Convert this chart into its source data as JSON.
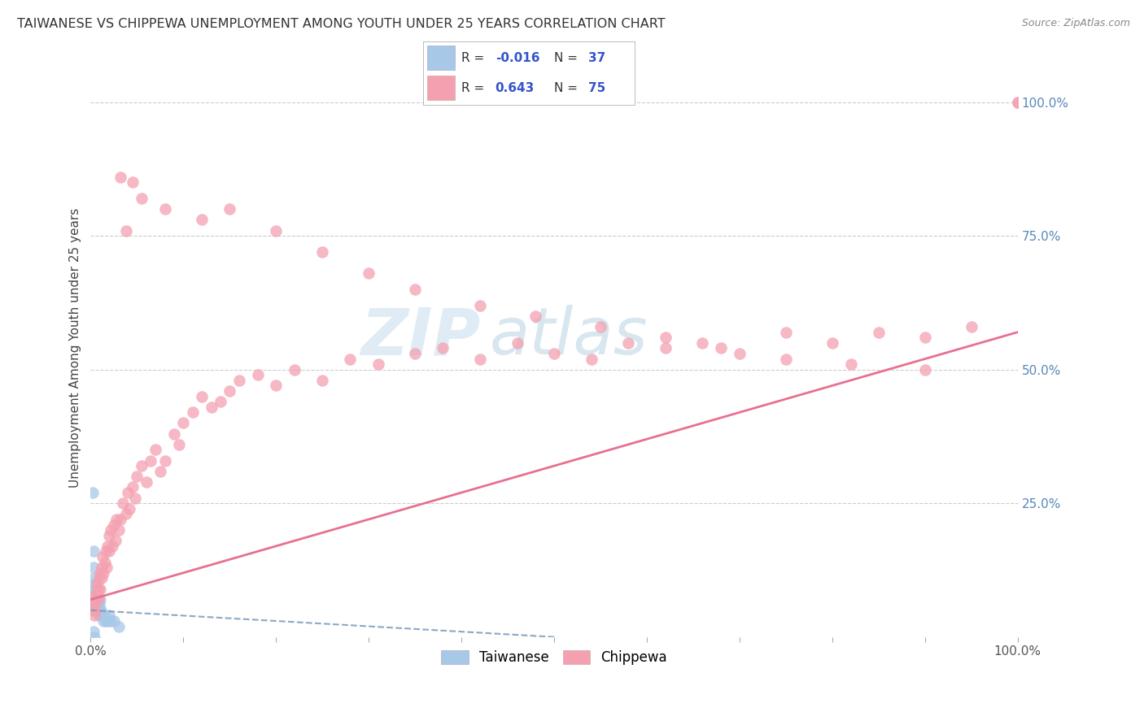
{
  "title": "TAIWANESE VS CHIPPEWA UNEMPLOYMENT AMONG YOUTH UNDER 25 YEARS CORRELATION CHART",
  "source": "Source: ZipAtlas.com",
  "ylabel": "Unemployment Among Youth under 25 years",
  "legend_taiwanese_R": "-0.016",
  "legend_taiwanese_N": "37",
  "legend_chippewa_R": "0.643",
  "legend_chippewa_N": "75",
  "legend_label_taiwanese": "Taiwanese",
  "legend_label_chippewa": "Chippewa",
  "watermark_zip": "ZIP",
  "watermark_atlas": "atlas",
  "taiwanese_color": "#A8C8E8",
  "chippewa_color": "#F4A0B0",
  "taiwanese_line_color": "#7799BB",
  "chippewa_line_color": "#E87090",
  "right_tick_color": "#5588BB",
  "background_color": "#FFFFFF",
  "grid_color": "#CCCCCC",
  "taiwanese_x": [
    0.002,
    0.003,
    0.003,
    0.004,
    0.004,
    0.004,
    0.005,
    0.005,
    0.005,
    0.005,
    0.006,
    0.006,
    0.006,
    0.006,
    0.007,
    0.007,
    0.007,
    0.008,
    0.008,
    0.009,
    0.009,
    0.01,
    0.01,
    0.01,
    0.011,
    0.012,
    0.013,
    0.014,
    0.015,
    0.016,
    0.018,
    0.02,
    0.022,
    0.025,
    0.03,
    0.003,
    0.004
  ],
  "taiwanese_y": [
    0.27,
    0.16,
    0.13,
    0.11,
    0.09,
    0.08,
    0.1,
    0.08,
    0.07,
    0.06,
    0.09,
    0.07,
    0.06,
    0.05,
    0.08,
    0.06,
    0.05,
    0.07,
    0.05,
    0.06,
    0.04,
    0.07,
    0.05,
    0.04,
    0.05,
    0.04,
    0.04,
    0.03,
    0.04,
    0.03,
    0.03,
    0.04,
    0.03,
    0.03,
    0.02,
    0.01,
    0.0
  ],
  "chippewa_x": [
    0.002,
    0.003,
    0.004,
    0.005,
    0.005,
    0.006,
    0.007,
    0.007,
    0.008,
    0.008,
    0.009,
    0.01,
    0.01,
    0.012,
    0.012,
    0.013,
    0.014,
    0.015,
    0.016,
    0.017,
    0.018,
    0.02,
    0.02,
    0.022,
    0.023,
    0.025,
    0.027,
    0.028,
    0.03,
    0.032,
    0.035,
    0.038,
    0.04,
    0.042,
    0.045,
    0.048,
    0.05,
    0.055,
    0.06,
    0.065,
    0.07,
    0.075,
    0.08,
    0.09,
    0.095,
    0.1,
    0.11,
    0.12,
    0.13,
    0.14,
    0.15,
    0.16,
    0.18,
    0.2,
    0.22,
    0.25,
    0.28,
    0.31,
    0.35,
    0.38,
    0.42,
    0.46,
    0.5,
    0.54,
    0.58,
    0.62,
    0.66,
    0.7,
    0.75,
    0.8,
    0.85,
    0.9,
    0.95,
    1.0,
    1.0
  ],
  "chippewa_y": [
    0.05,
    0.06,
    0.04,
    0.07,
    0.05,
    0.08,
    0.1,
    0.08,
    0.09,
    0.07,
    0.11,
    0.12,
    0.09,
    0.13,
    0.11,
    0.15,
    0.12,
    0.14,
    0.16,
    0.13,
    0.17,
    0.19,
    0.16,
    0.2,
    0.17,
    0.21,
    0.18,
    0.22,
    0.2,
    0.22,
    0.25,
    0.23,
    0.27,
    0.24,
    0.28,
    0.26,
    0.3,
    0.32,
    0.29,
    0.33,
    0.35,
    0.31,
    0.33,
    0.38,
    0.36,
    0.4,
    0.42,
    0.45,
    0.43,
    0.44,
    0.46,
    0.48,
    0.49,
    0.47,
    0.5,
    0.48,
    0.52,
    0.51,
    0.53,
    0.54,
    0.52,
    0.55,
    0.53,
    0.52,
    0.55,
    0.54,
    0.55,
    0.53,
    0.57,
    0.55,
    0.57,
    0.56,
    0.58,
    1.0,
    1.0
  ],
  "chippewa_outliers_x": [
    0.032,
    0.038,
    0.045,
    0.055,
    0.08,
    0.12,
    0.15,
    0.2,
    0.25,
    0.3,
    0.35,
    0.42,
    0.48,
    0.55,
    0.62,
    0.68,
    0.75,
    0.82,
    0.9
  ],
  "chippewa_outliers_y": [
    0.86,
    0.76,
    0.85,
    0.82,
    0.8,
    0.78,
    0.8,
    0.76,
    0.72,
    0.68,
    0.65,
    0.62,
    0.6,
    0.58,
    0.56,
    0.54,
    0.52,
    0.51,
    0.5
  ],
  "xlim": [
    0.0,
    1.0
  ],
  "ylim": [
    0.0,
    1.08
  ],
  "tw_line_x": [
    0.0,
    0.5
  ],
  "tw_line_y": [
    0.05,
    0.0
  ],
  "ch_line_x": [
    0.0,
    1.0
  ],
  "ch_line_y": [
    0.07,
    0.57
  ]
}
